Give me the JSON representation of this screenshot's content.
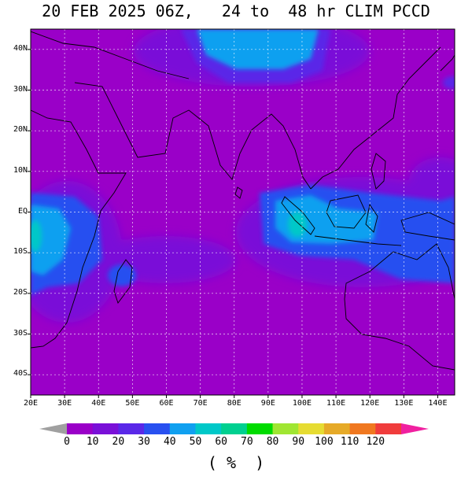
{
  "title": "20 FEB 2025 06Z,   24 to  48 hr CLIM PCCD",
  "units_label": "( %  )",
  "lat_labels": [
    "40N",
    "30N",
    "20N",
    "10N",
    "EQ",
    "10S",
    "20S",
    "30S",
    "40S"
  ],
  "lat_values": [
    40,
    30,
    20,
    10,
    0,
    -10,
    -20,
    -30,
    -40
  ],
  "lon_labels": [
    "20E",
    "30E",
    "40E",
    "50E",
    "60E",
    "70E",
    "80E",
    "90E",
    "100E",
    "110E",
    "120E",
    "130E",
    "140E"
  ],
  "lon_values": [
    20,
    30,
    40,
    50,
    60,
    70,
    80,
    90,
    100,
    110,
    120,
    130,
    140
  ],
  "extent": {
    "lon_min": 20,
    "lon_max": 145,
    "lat_min": -45,
    "lat_max": 45
  },
  "colorbar": {
    "labels": [
      "0",
      "10",
      "20",
      "30",
      "40",
      "50",
      "60",
      "70",
      "80",
      "90",
      "100",
      "110",
      "120"
    ],
    "colors": [
      "#9a00c8",
      "#7a10d8",
      "#5a28e8",
      "#2850f0",
      "#10a0f0",
      "#00c8c8",
      "#00d090",
      "#00dc00",
      "#a0e632",
      "#e6dc32",
      "#e6aa28",
      "#f07820",
      "#f03c3c"
    ],
    "under_color": "#a0a0a0",
    "over_color": "#f020a0"
  },
  "field_regions": [
    {
      "name": "tibet-plateau",
      "level": "30-40",
      "color": "#10a0f0"
    },
    {
      "name": "maritime-continent",
      "level": "20-40",
      "color": "#2850f0"
    },
    {
      "name": "southern-africa",
      "level": "20-40",
      "color": "#2850f0"
    }
  ]
}
